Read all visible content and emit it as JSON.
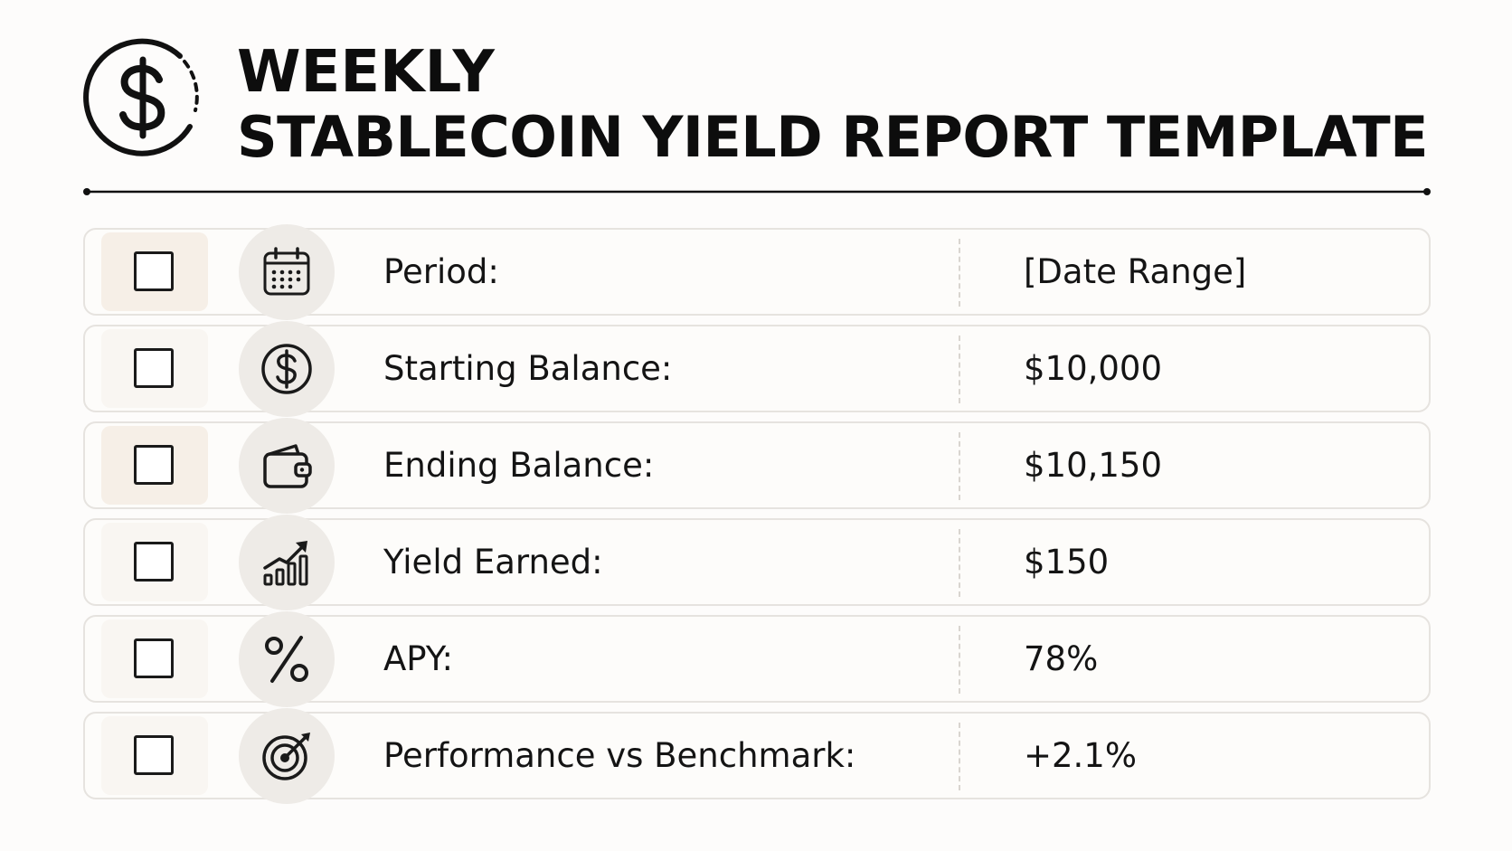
{
  "header": {
    "logo_icon": "dollar-coin-icon",
    "title_line_1": "WEEKLY",
    "title_line_2": "STABLECOIN YIELD REPORT TEMPLATE"
  },
  "rows": [
    {
      "icon": "calendar-icon",
      "checked": false,
      "label": "Period:",
      "value": "[Date Range]"
    },
    {
      "icon": "dollar-circle-icon",
      "checked": false,
      "label": "Starting Balance:",
      "value": "$10,000"
    },
    {
      "icon": "wallet-icon",
      "checked": false,
      "label": "Ending Balance:",
      "value": "$10,150"
    },
    {
      "icon": "growth-chart-icon",
      "checked": false,
      "label": "Yield Earned:",
      "value": "$150"
    },
    {
      "icon": "percent-icon",
      "checked": false,
      "label": "APY:",
      "value": "78%"
    },
    {
      "icon": "target-icon",
      "checked": false,
      "label": "Performance vs Benchmark:",
      "value": "+2.1%"
    }
  ]
}
